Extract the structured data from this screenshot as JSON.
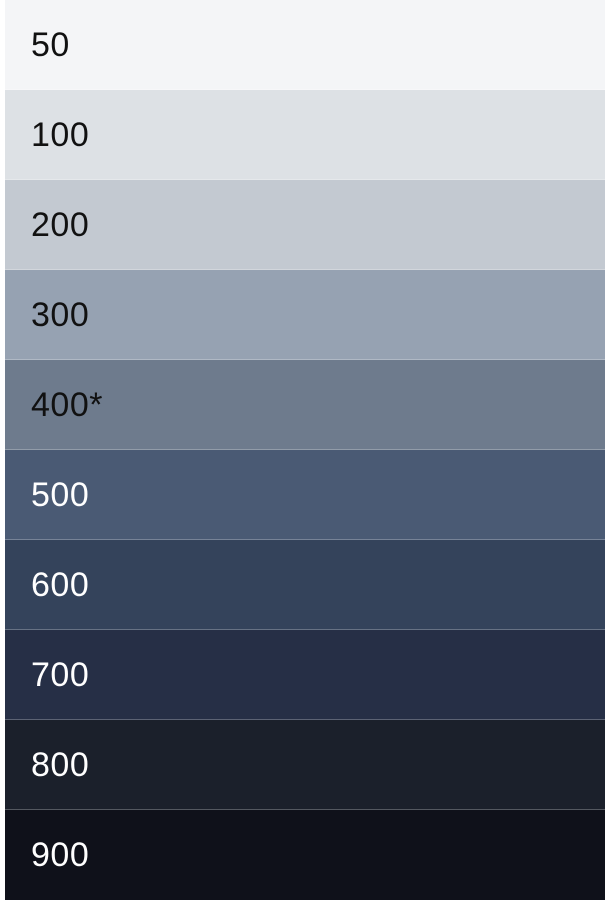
{
  "palette": {
    "swatches": [
      {
        "label": "50",
        "color": "#f4f5f7",
        "text_color": "#111111"
      },
      {
        "label": "100",
        "color": "#dde1e5",
        "text_color": "#111111"
      },
      {
        "label": "200",
        "color": "#c3c9d1",
        "text_color": "#111111"
      },
      {
        "label": "300",
        "color": "#96a2b2",
        "text_color": "#111111"
      },
      {
        "label": "400*",
        "color": "#6e7b8d",
        "text_color": "#111111"
      },
      {
        "label": "500",
        "color": "#4a5a74",
        "text_color": "#ffffff"
      },
      {
        "label": "600",
        "color": "#34435b",
        "text_color": "#ffffff"
      },
      {
        "label": "700",
        "color": "#262f46",
        "text_color": "#ffffff"
      },
      {
        "label": "800",
        "color": "#1b202b",
        "text_color": "#ffffff"
      },
      {
        "label": "900",
        "color": "#0f111a",
        "text_color": "#ffffff"
      }
    ]
  }
}
